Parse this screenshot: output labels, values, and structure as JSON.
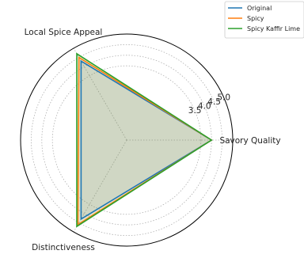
{
  "chart_data": {
    "type": "radar",
    "categories": [
      "Savory Quality",
      "Local Spice Appeal",
      "Distinctiveness"
    ],
    "rlim": [
      0,
      5.0
    ],
    "rticks": [
      "3.5",
      "4.0",
      "4.5",
      "5.0"
    ],
    "grid": true,
    "legend_position": "top-right",
    "series": [
      {
        "name": "Original",
        "values": [
          4.0,
          4.3,
          4.3
        ],
        "color": "#1f77b4"
      },
      {
        "name": "Spicy",
        "values": [
          4.0,
          4.5,
          4.6
        ],
        "color": "#ff7f0e"
      },
      {
        "name": "Spicy Kaffir Lime",
        "values": [
          4.0,
          4.7,
          4.7
        ],
        "color": "#2ca02c"
      }
    ]
  }
}
